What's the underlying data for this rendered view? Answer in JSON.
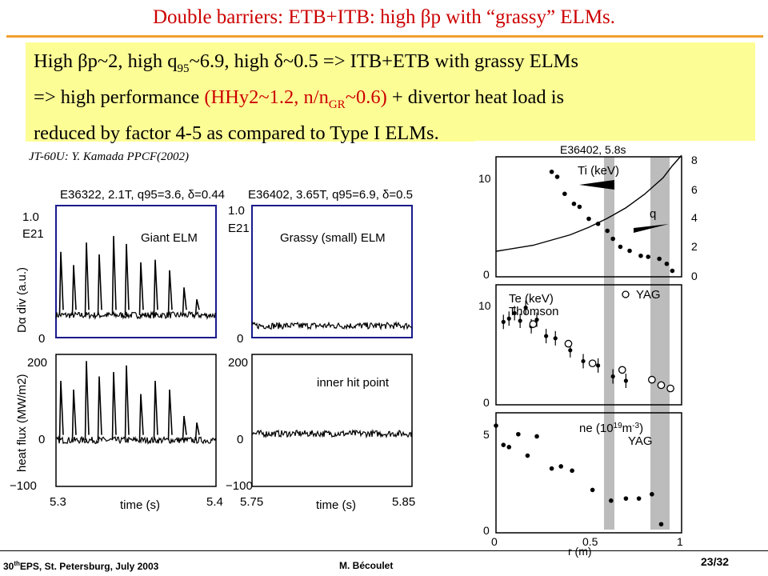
{
  "slide": {
    "title": "Double barriers: ETB+ITB: high βp with “grassy” ELMs.",
    "highlight": {
      "l1a": "High βp~2, high q",
      "l1sub": "95",
      "l1b": "~6.9, high δ~0.5 => ITB+ETB with grassy ELMs",
      "l2a": "=> high performance ",
      "l2red1": "(HHy2~1.2, n/n",
      "l2sub": "GR",
      "l2red2": "~0.6)",
      "l2b": " + divertor heat load is",
      "l3": "reduced by factor 4-5 as compared to Type I ELMs."
    },
    "citation": "JT-60U: Y. Kamada PPCF(2002)",
    "footer": {
      "conf_pre": "30",
      "conf_sup": "th",
      "conf_post": "EPS, St. Petersburg, July 2003",
      "author": "M. Bécoulet",
      "page": "23/32"
    },
    "colors": {
      "title": "#cc0000",
      "highlight_bg": "#fdfd96",
      "rule": "#f0a030",
      "frame_blue": "#1a1a8c",
      "band_gray": "#bcbcbc"
    }
  },
  "chart_data": [
    {
      "type": "line",
      "panel": "left-top",
      "title": "E36322, 2.1T, q95=3.6, δ=0.44",
      "ylabel": "Dα div (a.u.)",
      "ylabel_extra": "E21",
      "annotation": "Giant ELM",
      "ylim": [
        0,
        1.0
      ],
      "yticks": [
        "1.0",
        "0"
      ],
      "xlim": [
        5.3,
        5.4
      ],
      "baseline": 0.17,
      "spike_times": [
        5.303,
        5.311,
        5.319,
        5.327,
        5.336,
        5.344,
        5.353,
        5.362,
        5.371,
        5.38,
        5.388
      ],
      "spike_values": [
        0.65,
        0.55,
        0.72,
        0.63,
        0.77,
        0.71,
        0.57,
        0.59,
        0.51,
        0.38,
        0.29
      ]
    },
    {
      "type": "line",
      "panel": "left-bottom",
      "ylabel": "heat flux (MW/m2)",
      "ylim": [
        -100,
        200
      ],
      "yticks": [
        "200",
        "0",
        "−100"
      ],
      "xlim": [
        5.3,
        5.4
      ],
      "xticks": [
        "5.3",
        "5.4"
      ],
      "xlabel": "time (s)",
      "baseline": 5,
      "spike_times": [
        5.303,
        5.311,
        5.319,
        5.327,
        5.336,
        5.344,
        5.353,
        5.362,
        5.371,
        5.38,
        5.388
      ],
      "spike_values": [
        140,
        120,
        185,
        150,
        160,
        175,
        110,
        140,
        120,
        60,
        45
      ]
    },
    {
      "type": "line",
      "panel": "middle-top",
      "title": "E36402, 3.65T, q95=6.9, δ=0.5",
      "ylabel_extra": "E21",
      "annotation": "Grassy (small) ELM",
      "ylim": [
        0,
        1.0
      ],
      "yticks": [
        "1.0",
        "0"
      ],
      "xlim": [
        5.75,
        5.85
      ],
      "baseline": 0.09
    },
    {
      "type": "line",
      "panel": "middle-bottom",
      "annotation": "inner hit point",
      "ylim": [
        -100,
        200
      ],
      "yticks": [
        "200",
        "0",
        "−100"
      ],
      "xlim": [
        5.75,
        5.85
      ],
      "xticks": [
        "5.75",
        "5.85"
      ],
      "xlabel": "time (s)",
      "baseline": 20
    },
    {
      "type": "scatter",
      "panel": "right-top",
      "title": "E36402, 5.8s",
      "series": [
        {
          "name": "Ti (keV)",
          "x": [
            0.3,
            0.33,
            0.37,
            0.42,
            0.45,
            0.5,
            0.55,
            0.6,
            0.63,
            0.67,
            0.72,
            0.78,
            0.82,
            0.88,
            0.92,
            0.95
          ],
          "y": [
            10.5,
            10.0,
            8.3,
            7.3,
            7.0,
            5.8,
            5.3,
            4.6,
            3.8,
            3.0,
            2.6,
            2.1,
            2.0,
            1.8,
            1.3,
            0.6
          ]
        },
        {
          "name": "q",
          "x": [
            0.0,
            0.2,
            0.4,
            0.5,
            0.6,
            0.7,
            0.8,
            0.9,
            0.95,
            1.0
          ],
          "y": [
            1.7,
            2.1,
            2.8,
            3.3,
            3.9,
            4.6,
            5.5,
            6.6,
            7.4,
            8.1
          ]
        }
      ],
      "yticks_left": [
        "10",
        "0"
      ],
      "yticks_right": [
        "8",
        "6",
        "4",
        "2",
        "0"
      ],
      "labels": [
        "Ti (keV)",
        "q"
      ]
    },
    {
      "type": "scatter",
      "panel": "right-middle",
      "series": [
        {
          "name": "Thomson",
          "x": [
            0.04,
            0.07,
            0.1,
            0.13,
            0.16,
            0.19,
            0.22,
            0.27,
            0.32,
            0.4,
            0.47,
            0.55,
            0.63,
            0.7
          ],
          "y": [
            7.6,
            7.9,
            8.4,
            7.7,
            8.9,
            7.2,
            7.8,
            6.3,
            6.1,
            5.0,
            4.0,
            3.6,
            2.6,
            2.2
          ]
        },
        {
          "name": "YAG",
          "x": [
            0.2,
            0.39,
            0.52,
            0.68,
            0.84,
            0.89,
            0.94
          ],
          "y": [
            7.4,
            5.6,
            3.8,
            3.2,
            2.3,
            1.8,
            1.5
          ]
        }
      ],
      "yticks_left": [
        "10",
        "0"
      ],
      "labels": [
        "Te (keV)",
        "Thomson",
        "YAG"
      ]
    },
    {
      "type": "scatter",
      "panel": "right-bottom",
      "series": [
        {
          "name": "ne YAG",
          "x": [
            0.0,
            0.04,
            0.07,
            0.12,
            0.17,
            0.22,
            0.3,
            0.35,
            0.41,
            0.52,
            0.62,
            0.7,
            0.77,
            0.84,
            0.89
          ],
          "y": [
            5.0,
            4.1,
            4.0,
            4.6,
            3.6,
            4.5,
            3.0,
            3.1,
            2.9,
            2.0,
            1.5,
            1.6,
            1.6,
            1.8,
            0.4
          ]
        }
      ],
      "yticks_left": [
        "5",
        "0"
      ],
      "xticks": [
        "0",
        "0.5",
        "1"
      ],
      "xlabel": "r (m)",
      "xlim": [
        0,
        1
      ],
      "labels": [
        "ne (10",
        "19",
        "m",
        "-3",
        ")",
        "YAG"
      ]
    }
  ]
}
